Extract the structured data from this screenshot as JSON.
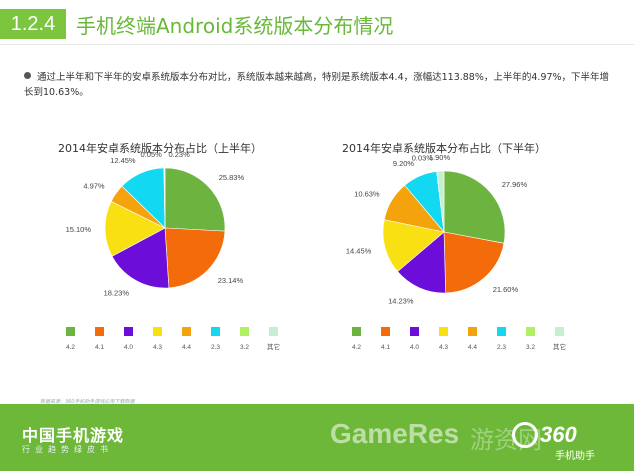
{
  "header": {
    "badge": "1.2.4",
    "title": "手机终端Android系统版本分布情况"
  },
  "summary": "通过上半年和下半年的安卓系统版本分布对比，系统版本越来越高，特别是系统版本4.4，涨幅达113.88%，上半年的4.97%，下半年增长到10.63%。",
  "source_note": "数据来源：360手机助手游戏应用下载数据",
  "footer": {
    "title": "中国手机游戏",
    "subtitle": "行业趋势绿皮书",
    "watermark": "GameRes",
    "watermark_cn": "游资网",
    "logo": "360",
    "logo_sub": "手机助手"
  },
  "colors": [
    "#6cb43f",
    "#f46b0b",
    "#6c0dd9",
    "#f8e013",
    "#f5a30c",
    "#13d8f1",
    "#b1f060",
    "#c6efd2"
  ],
  "chart_data": [
    {
      "type": "pie",
      "title": "2014年安卓系统版本分布占比（上半年）",
      "categories": [
        "4.2",
        "4.1",
        "4.0",
        "4.3",
        "4.4",
        "2.3",
        "3.2",
        "其它"
      ],
      "values": [
        25.83,
        23.14,
        18.23,
        15.1,
        4.97,
        12.45,
        0.05,
        0.23
      ],
      "labels": [
        "25.83%",
        "23.14%",
        "18.23%",
        "15.10%",
        "4.97%",
        "12.45%",
        "0.05%",
        "0.23%"
      ],
      "legend": "bottom"
    },
    {
      "type": "pie",
      "title": "2014年安卓系统版本分布占比（下半年）",
      "categories": [
        "4.2",
        "4.1",
        "4.0",
        "4.3",
        "4.4",
        "2.3",
        "3.2",
        "其它"
      ],
      "values": [
        27.96,
        21.6,
        14.23,
        14.45,
        10.63,
        9.2,
        0.03,
        1.9
      ],
      "labels": [
        "27.96%",
        "21.60%",
        "14.23%",
        "14.45%",
        "10.63%",
        "9.20%",
        "0.03%",
        "1.90%"
      ],
      "legend": "bottom"
    }
  ]
}
